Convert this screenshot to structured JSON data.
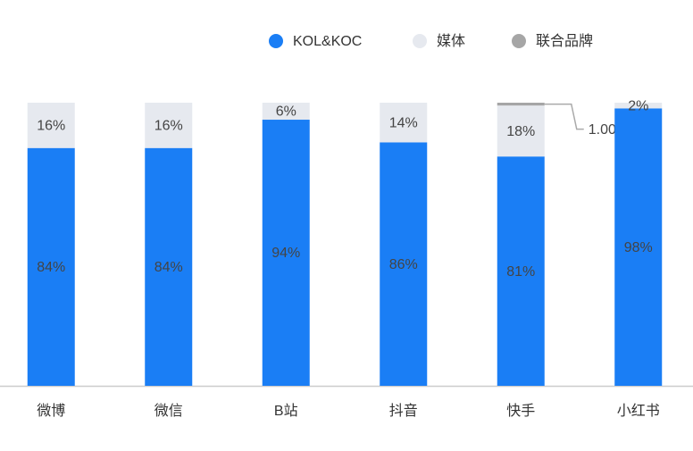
{
  "chart_data": {
    "type": "bar",
    "stacked": true,
    "categories": [
      "微博",
      "微信",
      "B站",
      "抖音",
      "快手",
      "小红书"
    ],
    "series": [
      {
        "name": "KOL&KOC",
        "color": "#1a7ef5",
        "values": [
          84,
          84,
          94,
          86,
          81,
          98
        ],
        "value_labels": [
          "84%",
          "84%",
          "94%",
          "86%",
          "81%",
          "98%"
        ]
      },
      {
        "name": "媒体",
        "color": "#e6e9ef",
        "values": [
          16,
          16,
          6,
          14,
          18,
          2
        ],
        "value_labels": [
          "16%",
          "16%",
          "6%",
          "14%",
          "18%",
          "2%"
        ]
      },
      {
        "name": "联合品牌",
        "color": "#a6a6a6",
        "values": [
          0,
          0,
          0,
          0,
          1,
          0
        ],
        "value_labels": [
          null,
          null,
          null,
          null,
          "1.00%",
          null
        ]
      }
    ],
    "ylim": [
      0,
      100
    ],
    "legend": "top"
  }
}
